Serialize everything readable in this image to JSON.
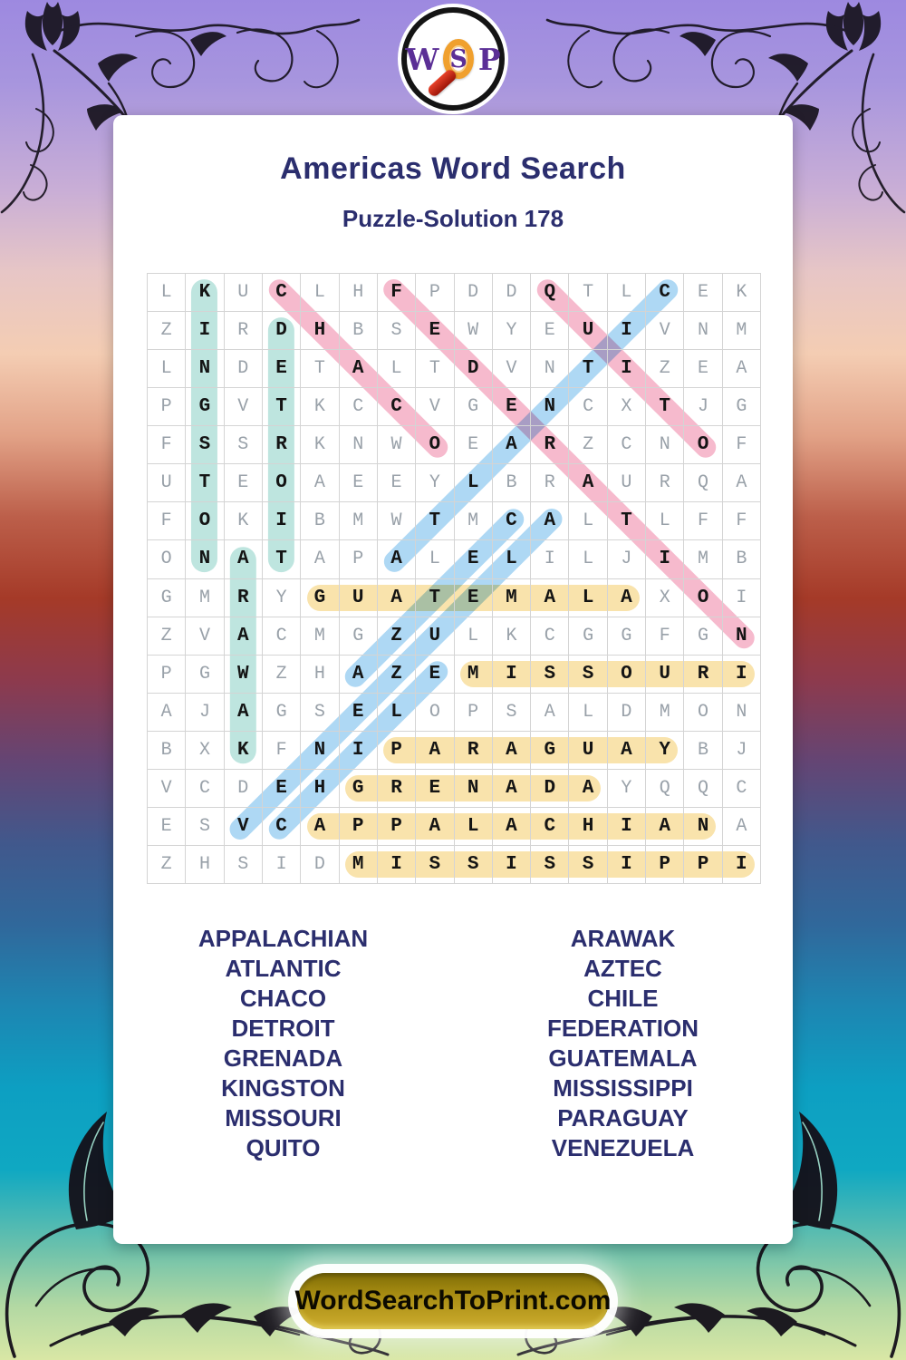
{
  "logo": {
    "w": "W",
    "s": "S",
    "p": "P"
  },
  "header": {
    "title": "Americas Word Search",
    "subtitle": "Puzzle-Solution 178"
  },
  "grid": {
    "rows": [
      "LKUCLHFPDDQTLCEK",
      "ZIRDHBSEWYEUIVNM",
      "LNDETALTDVNTIZEA",
      "PGVTKCCVGENCXTJG",
      "FSSRKNWOEARZCNOF",
      "UTEOAEEYLBRAURQA",
      "FOKIBMWTMCALTLFF",
      "ONATAPALELILJIMB",
      "GMRYGUATEMALAXOI",
      "ZVACMGZULKCGGFGN",
      "PGWZHAZEMISSOURI",
      "AJAGSELOPSALDMON",
      "BXKFNIPARAGUAYBJ",
      "VCDEHGRENADAYQQC",
      "ESVCAPPALACHIANA",
      "ZHSIDMISSISSIPPI"
    ]
  },
  "highlight_colors": {
    "yellow": "#f9e3ac",
    "teal": "#bee5df",
    "blue": "#aed8f4",
    "pink": "#f6bacd"
  },
  "words": [
    {
      "word": "GUATEMALA",
      "start": [
        9,
        5
      ],
      "end": [
        9,
        13
      ],
      "color": "yellow"
    },
    {
      "word": "MISSOURI",
      "start": [
        11,
        9
      ],
      "end": [
        11,
        16
      ],
      "color": "yellow"
    },
    {
      "word": "PARAGUAY",
      "start": [
        13,
        7
      ],
      "end": [
        13,
        14
      ],
      "color": "yellow"
    },
    {
      "word": "GRENADA",
      "start": [
        14,
        6
      ],
      "end": [
        14,
        12
      ],
      "color": "yellow"
    },
    {
      "word": "APPALACHIAN",
      "start": [
        15,
        5
      ],
      "end": [
        15,
        15
      ],
      "color": "yellow"
    },
    {
      "word": "MISSISSIPPI",
      "start": [
        16,
        6
      ],
      "end": [
        16,
        16
      ],
      "color": "yellow"
    },
    {
      "word": "KINGSTON",
      "start": [
        1,
        2
      ],
      "end": [
        8,
        2
      ],
      "color": "teal"
    },
    {
      "word": "DETROIT",
      "start": [
        2,
        4
      ],
      "end": [
        8,
        4
      ],
      "color": "teal"
    },
    {
      "word": "ARAWAK",
      "start": [
        8,
        3
      ],
      "end": [
        13,
        3
      ],
      "color": "teal"
    },
    {
      "word": "CHACO",
      "start": [
        1,
        4
      ],
      "end": [
        5,
        8
      ],
      "color": "pink"
    },
    {
      "word": "FEDERATION",
      "start": [
        1,
        7
      ],
      "end": [
        10,
        16
      ],
      "color": "pink"
    },
    {
      "word": "QUITO",
      "start": [
        1,
        11
      ],
      "end": [
        5,
        15
      ],
      "color": "pink"
    },
    {
      "word": "ATLANTIC",
      "start": [
        8,
        7
      ],
      "end": [
        1,
        14
      ],
      "color": "blue"
    },
    {
      "word": "AZTEC",
      "start": [
        11,
        6
      ],
      "end": [
        7,
        10
      ],
      "color": "blue"
    },
    {
      "word": "CHILE",
      "start": [
        15,
        4
      ],
      "end": [
        11,
        8
      ],
      "color": "blue"
    },
    {
      "word": "VENEZUELA",
      "start": [
        15,
        3
      ],
      "end": [
        7,
        11
      ],
      "color": "blue"
    }
  ],
  "word_list": {
    "left": [
      "APPALACHIAN",
      "ATLANTIC",
      "CHACO",
      "DETROIT",
      "GRENADA",
      "KINGSTON",
      "MISSOURI",
      "QUITO"
    ],
    "right": [
      "ARAWAK",
      "AZTEC",
      "CHILE",
      "FEDERATION",
      "GUATEMALA",
      "MISSISSIPPI",
      "PARAGUAY",
      "VENEZUELA"
    ]
  },
  "footer": {
    "site_label": "WordSearchToPrint.com"
  }
}
